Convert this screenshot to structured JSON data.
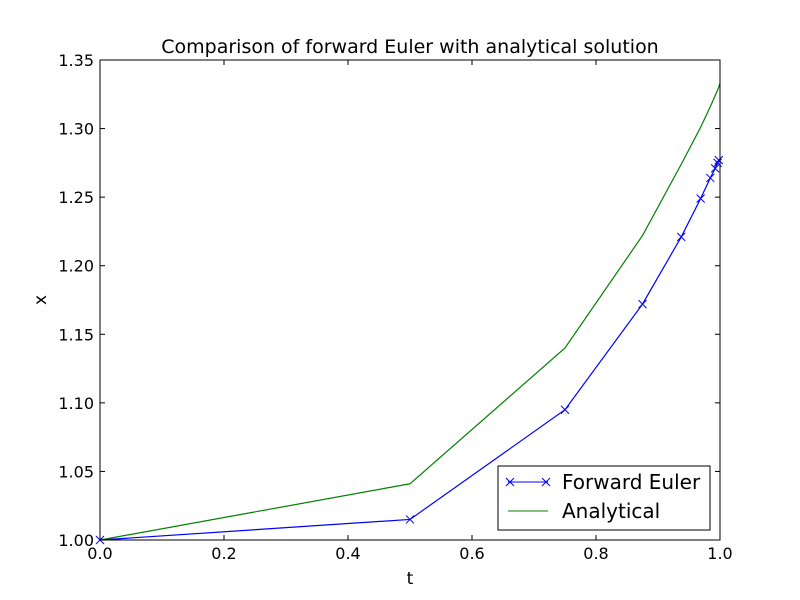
{
  "chart_data": {
    "type": "line",
    "title": "Comparison of forward Euler with analytical solution",
    "xlabel": "t",
    "ylabel": "x",
    "xlim": [
      0.0,
      1.0
    ],
    "ylim": [
      1.0,
      1.35
    ],
    "x_ticks": [
      "0.0",
      "0.2",
      "0.4",
      "0.6",
      "0.8",
      "1.0"
    ],
    "y_ticks": [
      "1.00",
      "1.05",
      "1.10",
      "1.15",
      "1.20",
      "1.25",
      "1.30",
      "1.35"
    ],
    "grid": false,
    "legend_position": "lower-right",
    "series": [
      {
        "name": "Forward Euler",
        "color": "#0000ff",
        "marker": "x",
        "x": [
          0.0,
          0.5,
          0.75,
          0.875,
          0.9375,
          0.96875,
          0.984375,
          0.9921875,
          0.99609375,
          0.998046875
        ],
        "y": [
          1.0,
          1.015,
          1.095,
          1.172,
          1.221,
          1.249,
          1.264,
          1.271,
          1.275,
          1.277
        ]
      },
      {
        "name": "Analytical",
        "color": "#008000",
        "marker": "none",
        "x": [
          0.0,
          0.5,
          0.75,
          0.875,
          0.9375,
          0.96875,
          0.984375,
          0.9921875,
          0.99609375,
          1.0
        ],
        "y": [
          1.0,
          1.041,
          1.14,
          1.222,
          1.274,
          1.301,
          1.316,
          1.324,
          1.328,
          1.333
        ]
      }
    ]
  }
}
